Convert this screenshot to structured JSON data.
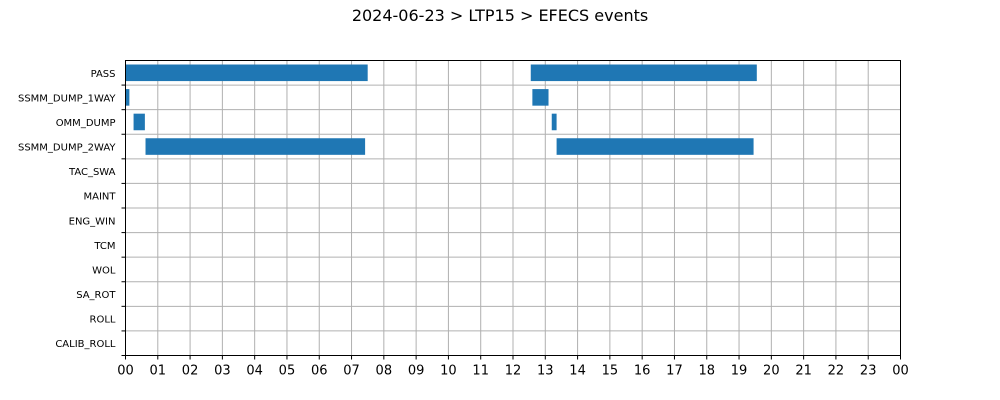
{
  "chart_data": {
    "type": "bar",
    "orientation": "horizontal-timeline",
    "title": "2024-06-23 > LTP15 > EFECS events",
    "xlabel": "",
    "ylabel": "",
    "xlim": [
      0,
      24
    ],
    "x_tick_labels": [
      "00",
      "01",
      "02",
      "03",
      "04",
      "05",
      "06",
      "07",
      "08",
      "09",
      "10",
      "11",
      "12",
      "13",
      "14",
      "15",
      "16",
      "17",
      "18",
      "19",
      "20",
      "21",
      "22",
      "23",
      "00"
    ],
    "categories": [
      "PASS",
      "SSMM_DUMP_1WAY",
      "OMM_DUMP",
      "SSMM_DUMP_2WAY",
      "TAC_SWA",
      "MAINT",
      "ENG_WIN",
      "TCM",
      "WOL",
      "SA_ROT",
      "ROLL",
      "CALIB_ROLL"
    ],
    "grid": true,
    "bar_color": "#1f77b4",
    "series": [
      {
        "intervals": [
          {
            "category": "PASS",
            "start": 0.0,
            "end": 7.5
          },
          {
            "category": "PASS",
            "start": 12.55,
            "end": 19.55
          },
          {
            "category": "SSMM_DUMP_1WAY",
            "start": 0.0,
            "end": 0.12
          },
          {
            "category": "SSMM_DUMP_1WAY",
            "start": 12.6,
            "end": 13.1
          },
          {
            "category": "OMM_DUMP",
            "start": 0.25,
            "end": 0.6
          },
          {
            "category": "OMM_DUMP",
            "start": 13.2,
            "end": 13.35
          },
          {
            "category": "SSMM_DUMP_2WAY",
            "start": 0.62,
            "end": 7.42
          },
          {
            "category": "SSMM_DUMP_2WAY",
            "start": 13.35,
            "end": 19.45
          }
        ]
      }
    ]
  }
}
